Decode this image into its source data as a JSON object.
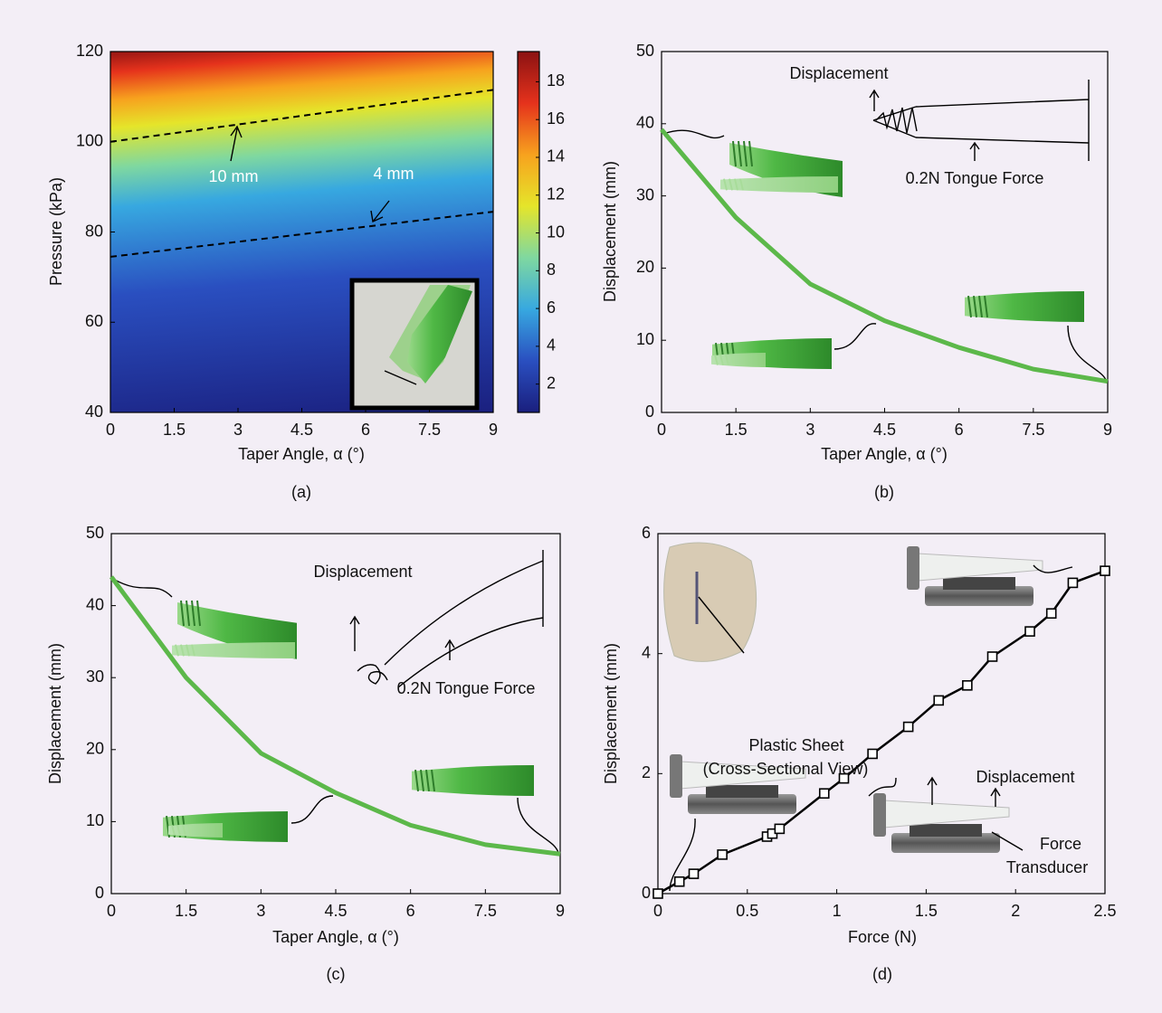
{
  "chart_data": [
    {
      "type": "contour",
      "x_label": "Taper Angle, α (°)",
      "y_label": "Pressure (kPa)",
      "caption": "(a)",
      "xlim": [
        0,
        9
      ],
      "ylim": [
        40,
        120
      ],
      "xticks": [
        0,
        1.5,
        3,
        4.5,
        6,
        7.5,
        9
      ],
      "yticks": [
        40,
        60,
        80,
        100,
        120
      ],
      "clim": [
        0.5,
        19.6
      ],
      "cticks": [
        2,
        4,
        6,
        8,
        10,
        12,
        14,
        16,
        18
      ],
      "colormap": [
        "#1a1f7e",
        "#2a4fc0",
        "#37a8e0",
        "#7fd8a0",
        "#e5e52a",
        "#f7a21e",
        "#e5321c",
        "#8b1212"
      ],
      "series": [
        {
          "name": "10 mm",
          "color": "#000000",
          "x": [
            0,
            9
          ],
          "values": [
            100,
            111.5
          ]
        },
        {
          "name": "4 mm",
          "color": "#000000",
          "x": [
            0,
            9
          ],
          "values": [
            74.5,
            84.5
          ]
        }
      ]
    },
    {
      "type": "line",
      "x_label": "Taper Angle, α (°)",
      "y_label": "Displacement (mm)",
      "caption": "(b)",
      "xlim": [
        0,
        9
      ],
      "ylim": [
        0,
        50
      ],
      "xticks": [
        0,
        1.5,
        3,
        4.5,
        6,
        7.5,
        9
      ],
      "yticks": [
        0,
        10,
        20,
        30,
        40,
        50
      ],
      "annotations": [
        "Displacement",
        "0.2N Tongue Force"
      ],
      "series": [
        {
          "color": "#5cb84a",
          "x": [
            0,
            1.5,
            3,
            4.5,
            6,
            7.5,
            9
          ],
          "values": [
            39.2,
            27,
            17.8,
            12.7,
            9,
            6,
            4.3
          ]
        }
      ]
    },
    {
      "type": "line",
      "x_label": "Taper Angle, α (°)",
      "y_label": "Displacement (mm)",
      "caption": "(c)",
      "xlim": [
        0,
        9
      ],
      "ylim": [
        0,
        50
      ],
      "xticks": [
        0,
        1.5,
        3,
        4.5,
        6,
        7.5,
        9
      ],
      "yticks": [
        0,
        10,
        20,
        30,
        40,
        50
      ],
      "annotations": [
        "Displacement",
        "0.2N Tongue Force"
      ],
      "series": [
        {
          "color": "#5cb84a",
          "x": [
            0,
            1.5,
            3,
            4.5,
            6,
            7.5,
            9
          ],
          "values": [
            44,
            30,
            19.5,
            14,
            9.5,
            6.8,
            5.5
          ]
        }
      ]
    },
    {
      "type": "line",
      "x_label": "Force (N)",
      "y_label": "Displacement (mm)",
      "caption": "(d)",
      "xlim": [
        0,
        2.5
      ],
      "ylim": [
        0,
        6
      ],
      "xticks": [
        0,
        0.5,
        1,
        1.5,
        2,
        2.5
      ],
      "yticks": [
        0,
        2,
        4,
        6
      ],
      "annotations": [
        "Plastic Sheet",
        "(Cross-Sectional View)",
        "Displacement",
        "Force",
        "Transducer"
      ],
      "series": [
        {
          "color": "#000000",
          "marker": "square",
          "x": [
            0,
            0.12,
            0.2,
            0.36,
            0.61,
            0.64,
            0.68,
            0.93,
            1.04,
            1.2,
            1.4,
            1.57,
            1.73,
            1.87,
            2.08,
            2.2,
            2.32,
            2.5
          ],
          "values": [
            0,
            0.2,
            0.33,
            0.65,
            0.95,
            1.0,
            1.08,
            1.67,
            1.92,
            2.33,
            2.78,
            3.22,
            3.47,
            3.95,
            4.37,
            4.67,
            5.18,
            5.38
          ]
        }
      ]
    }
  ]
}
